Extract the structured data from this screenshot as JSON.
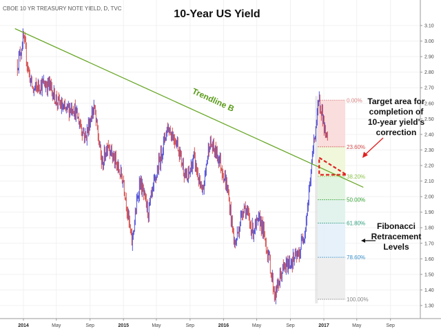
{
  "source_label": "CBOE 10 YR TREASURY NOTE YIELD, D, TVC",
  "chart_data": {
    "type": "candlestick",
    "title": "10-Year US Yield",
    "ylim": [
      1.25,
      3.15
    ],
    "y_ticks": [
      "3.10",
      "3.00",
      "2.90",
      "2.80",
      "2.70",
      "2.60",
      "2.50",
      "2.40",
      "2.30",
      "2.20",
      "2.10",
      "2.00",
      "1.90",
      "1.80",
      "1.70",
      "1.60",
      "1.50",
      "1.40",
      "1.30"
    ],
    "x_ticks": [
      "2014",
      "May",
      "Sep",
      "2015",
      "May",
      "Sep",
      "2016",
      "May",
      "Sep",
      "2017",
      "May",
      "Sep"
    ],
    "x_ticks_bold": [
      "2014",
      "2015",
      "2016",
      "2017"
    ],
    "price_path": [
      {
        "t": "2013-12-10",
        "y": 2.85
      },
      {
        "t": "2014-01-01",
        "y": 3.02
      },
      {
        "t": "2014-01-20",
        "y": 2.8
      },
      {
        "t": "2014-02-05",
        "y": 2.68
      },
      {
        "t": "2014-03-01",
        "y": 2.72
      },
      {
        "t": "2014-04-05",
        "y": 2.72
      },
      {
        "t": "2014-05-01",
        "y": 2.62
      },
      {
        "t": "2014-06-01",
        "y": 2.55
      },
      {
        "t": "2014-07-01",
        "y": 2.58
      },
      {
        "t": "2014-08-15",
        "y": 2.38
      },
      {
        "t": "2014-09-15",
        "y": 2.58
      },
      {
        "t": "2014-10-15",
        "y": 2.2
      },
      {
        "t": "2014-11-05",
        "y": 2.35
      },
      {
        "t": "2014-12-01",
        "y": 2.22
      },
      {
        "t": "2015-01-01",
        "y": 2.1
      },
      {
        "t": "2015-01-31",
        "y": 1.7
      },
      {
        "t": "2015-03-01",
        "y": 2.1
      },
      {
        "t": "2015-04-01",
        "y": 1.9
      },
      {
        "t": "2015-05-15",
        "y": 2.25
      },
      {
        "t": "2015-06-10",
        "y": 2.45
      },
      {
        "t": "2015-07-15",
        "y": 2.35
      },
      {
        "t": "2015-08-20",
        "y": 2.1
      },
      {
        "t": "2015-09-15",
        "y": 2.25
      },
      {
        "t": "2015-10-15",
        "y": 2.0
      },
      {
        "t": "2015-11-10",
        "y": 2.35
      },
      {
        "t": "2015-12-15",
        "y": 2.25
      },
      {
        "t": "2016-01-15",
        "y": 2.05
      },
      {
        "t": "2016-02-11",
        "y": 1.68
      },
      {
        "t": "2016-03-15",
        "y": 1.95
      },
      {
        "t": "2016-04-15",
        "y": 1.78
      },
      {
        "t": "2016-05-15",
        "y": 1.85
      },
      {
        "t": "2016-06-15",
        "y": 1.6
      },
      {
        "t": "2016-07-06",
        "y": 1.36
      },
      {
        "t": "2016-08-01",
        "y": 1.52
      },
      {
        "t": "2016-09-01",
        "y": 1.58
      },
      {
        "t": "2016-10-01",
        "y": 1.62
      },
      {
        "t": "2016-10-25",
        "y": 1.8
      },
      {
        "t": "2016-11-09",
        "y": 2.05
      },
      {
        "t": "2016-11-25",
        "y": 2.35
      },
      {
        "t": "2016-12-15",
        "y": 2.62
      },
      {
        "t": "2016-12-25",
        "y": 2.55
      },
      {
        "t": "2017-01-05",
        "y": 2.4
      },
      {
        "t": "2017-01-15",
        "y": 2.35
      }
    ],
    "trendline": {
      "label": "Trendline B",
      "start": {
        "t": "2013-12-01",
        "y": 3.08
      },
      "end": {
        "t": "2017-05-25",
        "y": 2.06
      }
    },
    "fibonacci": {
      "top": 2.62,
      "bottom": 1.34,
      "levels": [
        {
          "label": "0.00%",
          "value": 2.62,
          "color": "#d88080"
        },
        {
          "label": "23.60%",
          "value": 2.32,
          "color": "#d04848"
        },
        {
          "label": "38.20%",
          "value": 2.13,
          "color": "#8bc34a"
        },
        {
          "label": "50.00%",
          "value": 1.98,
          "color": "#2e9e2e"
        },
        {
          "label": "61.80%",
          "value": 1.83,
          "color": "#2a9a7a"
        },
        {
          "label": "78.60%",
          "value": 1.61,
          "color": "#3a8fc8"
        },
        {
          "label": "100.00%",
          "value": 1.34,
          "color": "#888888"
        }
      ],
      "zone_colors": [
        "#f9d9d9",
        "#eef6d6",
        "#def3de",
        "#dff2ec",
        "#e3eff9",
        "#ececec"
      ]
    },
    "target_box": {
      "t_start": "2016-12-15",
      "t_end": "2017-03-25",
      "y_top": 2.25,
      "y_bottom": 2.14
    },
    "annotations": {
      "target": [
        "Target area for",
        "completion of",
        "10-year yield's",
        "correction"
      ],
      "fib": [
        "Fibonacci",
        "Retracement",
        "Levels"
      ]
    },
    "colors": {
      "up": "#2222cc",
      "down": "#cc2222",
      "trendline": "#6aa82a",
      "target_box": "#e02020"
    }
  }
}
